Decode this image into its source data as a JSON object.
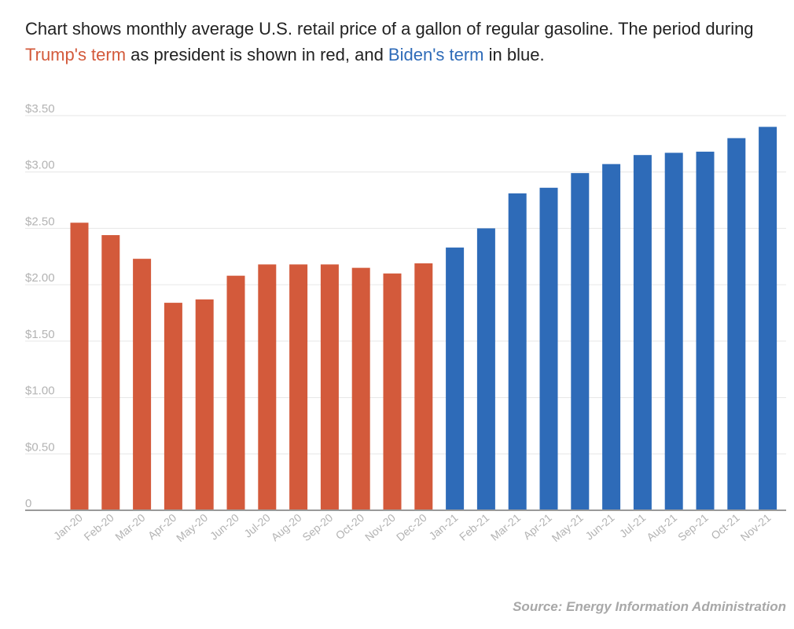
{
  "caption": {
    "part1": "Chart shows monthly average U.S. retail price of a gallon of regular gasoline. The period during ",
    "trump_term": "Trump's term",
    "part2": " as president is shown in red, and ",
    "biden_term": "Biden's term",
    "part3": " in blue."
  },
  "source": "Source: Energy Information Administration",
  "chart_data": {
    "type": "bar",
    "categories": [
      "Jan-20",
      "Feb-20",
      "Mar-20",
      "Apr-20",
      "May-20",
      "Jun-20",
      "Jul-20",
      "Aug-20",
      "Sep-20",
      "Oct-20",
      "Nov-20",
      "Dec-20",
      "Jan-21",
      "Feb-21",
      "Mar-21",
      "Apr-21",
      "May-21",
      "Jun-21",
      "Jul-21",
      "Aug-21",
      "Sep-21",
      "Oct-21",
      "Nov-21"
    ],
    "values": [
      2.55,
      2.44,
      2.23,
      1.84,
      1.87,
      2.08,
      2.18,
      2.18,
      2.18,
      2.15,
      2.1,
      2.19,
      2.33,
      2.5,
      2.81,
      2.86,
      2.99,
      3.07,
      3.15,
      3.17,
      3.18,
      3.3,
      3.4
    ],
    "term": [
      "trump",
      "trump",
      "trump",
      "trump",
      "trump",
      "trump",
      "trump",
      "trump",
      "trump",
      "trump",
      "trump",
      "trump",
      "biden",
      "biden",
      "biden",
      "biden",
      "biden",
      "biden",
      "biden",
      "biden",
      "biden",
      "biden",
      "biden"
    ],
    "yticks": [
      0,
      0.5,
      1.0,
      1.5,
      2.0,
      2.5,
      3.0,
      3.5
    ],
    "ytick_labels": [
      "0",
      "$0.50",
      "$1.00",
      "$1.50",
      "$2.00",
      "$2.50",
      "$3.00",
      "$3.50"
    ],
    "ylim": [
      0,
      3.5
    ],
    "grid": true,
    "colors": {
      "trump": "#d35a3b",
      "biden": "#2e6bb8",
      "grid": "#e6e6e6",
      "baseline": "#9a9a9a",
      "tick_label": "#b3b3b3"
    }
  }
}
